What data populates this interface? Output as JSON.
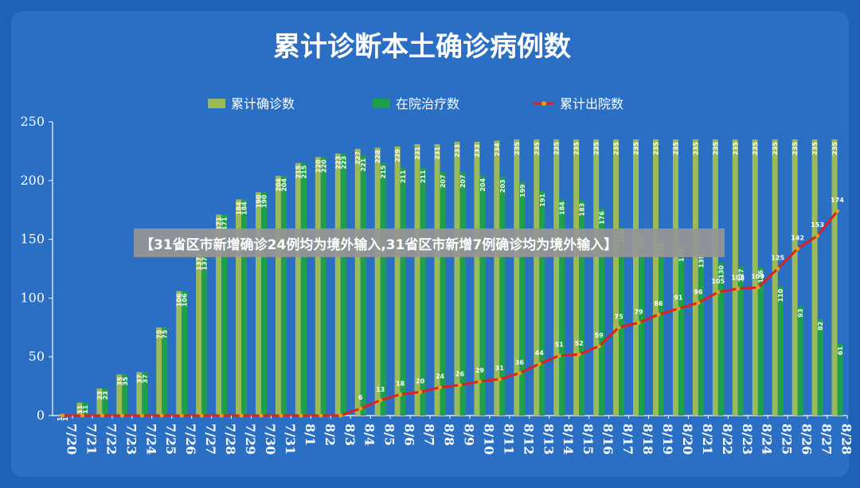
{
  "colors": {
    "background": "#1f62b5",
    "cumulative_bar": "#9bbb59",
    "inpatient_bar": "#1ea04a",
    "discharged_line": "#e0201b",
    "marker": "#e0a020"
  },
  "banner": {
    "text": "【31省区市新增确诊24例均为境外输入,31省区市新增7例确诊均为境外输入】"
  },
  "chart_data": {
    "type": "bar",
    "title": "累计诊断本土确诊病例数",
    "xlabel": "",
    "ylabel": "",
    "ylim": [
      0,
      250
    ],
    "yticks": [
      0,
      50,
      100,
      150,
      200,
      250
    ],
    "grid": false,
    "legend": "top",
    "categories": [
      "7/20",
      "7/21",
      "7/22",
      "7/23",
      "7/24",
      "7/25",
      "7/26",
      "7/27",
      "7/28",
      "7/29",
      "7/30",
      "7/31",
      "8/1",
      "8/2",
      "8/3",
      "8/4",
      "8/5",
      "8/6",
      "8/7",
      "8/8",
      "8/9",
      "8/10",
      "8/11",
      "8/12",
      "8/13",
      "8/14",
      "8/15",
      "8/16",
      "8/17",
      "8/18",
      "8/19",
      "8/20",
      "8/21",
      "8/22",
      "8/23",
      "8/24",
      "8/25",
      "8/26",
      "8/27",
      "8/28"
    ],
    "series": [
      {
        "name": "累计确诊数",
        "kind": "bar",
        "values": [
          1,
          11,
          23,
          35,
          37,
          75,
          106,
          137,
          171,
          184,
          190,
          204,
          215,
          220,
          223,
          227,
          228,
          229,
          231,
          231,
          233,
          233,
          234,
          235,
          235,
          235,
          235,
          235,
          235,
          235,
          235,
          235,
          235,
          235,
          235,
          235,
          235,
          235,
          235,
          235
        ],
        "labels": [
          "1",
          "11",
          "23",
          "35",
          "37",
          "75",
          "106",
          "137",
          "171",
          "184",
          "190",
          "204",
          "215",
          "220",
          "223",
          "227",
          "228",
          "229",
          "231",
          "231",
          "233",
          "233",
          "234",
          "235",
          "235",
          "235",
          "235",
          "235",
          "235",
          "235",
          "235",
          "235",
          "235",
          "235",
          "235",
          "235",
          "235",
          "235",
          "235",
          "235"
        ]
      },
      {
        "name": "在院治疗数",
        "kind": "bar",
        "values": [
          1,
          11,
          23,
          35,
          37,
          75,
          106,
          137,
          171,
          184,
          190,
          204,
          215,
          220,
          223,
          221,
          215,
          211,
          211,
          207,
          207,
          204,
          203,
          199,
          191,
          184,
          183,
          176,
          160,
          156,
          149,
          144,
          139,
          130,
          127,
          126,
          110,
          93,
          82,
          61
        ],
        "labels": [
          "1",
          "11",
          "23",
          "35",
          "37",
          "75",
          "106",
          "137",
          "171",
          "184",
          "190",
          "204",
          "215",
          "220",
          "223",
          "221",
          "215",
          "211",
          "211",
          "207",
          "207",
          "204",
          "203",
          "199",
          "191",
          "184",
          "183",
          "176",
          "160",
          "156",
          "149",
          "144",
          "139",
          "130",
          "127",
          "126",
          "110",
          "93",
          "82",
          "61"
        ]
      },
      {
        "name": "累计出院数",
        "kind": "line",
        "values": [
          0,
          0,
          0,
          0,
          0,
          0,
          0,
          0,
          0,
          0,
          0,
          0,
          0,
          0,
          0,
          6,
          13,
          18,
          20,
          24,
          26,
          29,
          31,
          36,
          44,
          51,
          52,
          59,
          75,
          79,
          86,
          91,
          96,
          105,
          108,
          109,
          125,
          142,
          153,
          174
        ],
        "labels": [
          "",
          "",
          "",
          "",
          "",
          "",
          "",
          "",
          "",
          "",
          "",
          "",
          "",
          "",
          "",
          "6",
          "13",
          "18",
          "20",
          "24",
          "26",
          "29",
          "31",
          "36",
          "44",
          "51",
          "52",
          "59",
          "75",
          "79",
          "86",
          "91",
          "96",
          "105",
          "108",
          "109",
          "125",
          "142",
          "153",
          "174"
        ]
      }
    ]
  }
}
